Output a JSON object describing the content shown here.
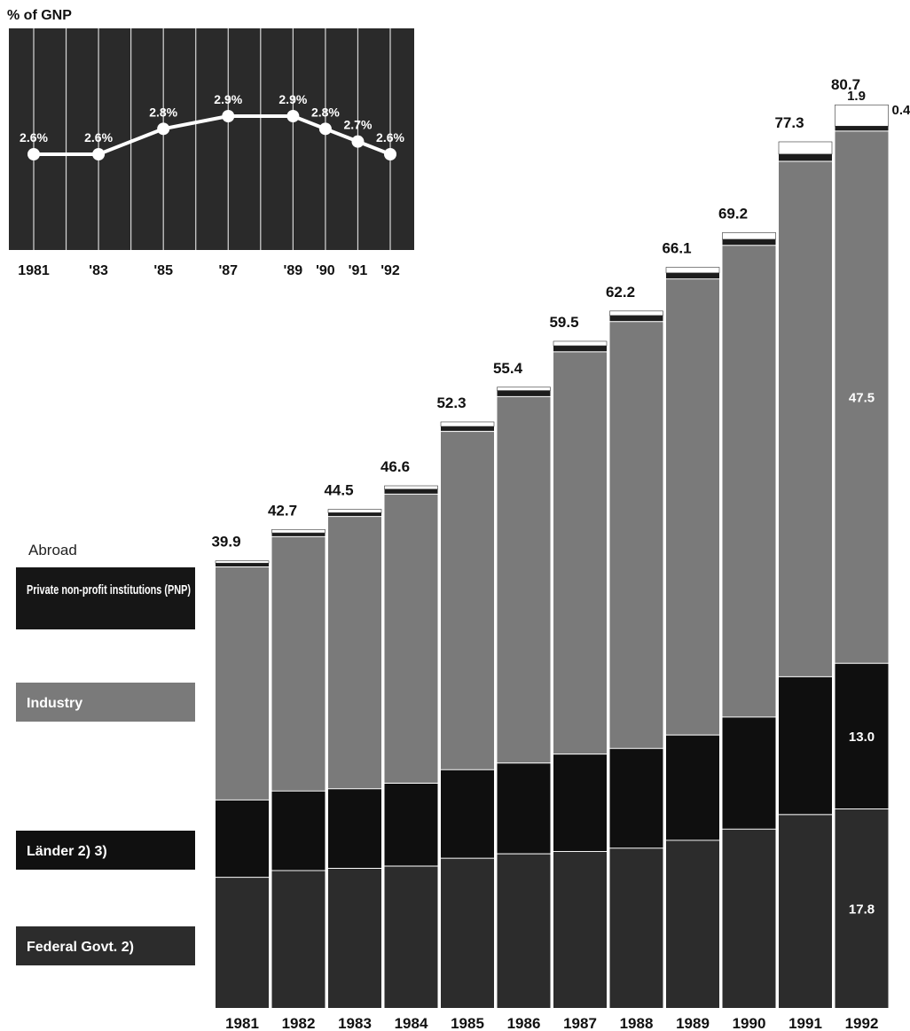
{
  "chart_data": [
    {
      "type": "line",
      "title": "% of GNP",
      "x": [
        "1981",
        "'83",
        "'85",
        "'87",
        "'89",
        "'90",
        "'91",
        "'92"
      ],
      "years": [
        1981,
        1983,
        1985,
        1987,
        1989,
        1990,
        1991,
        1992
      ],
      "values": [
        2.6,
        2.6,
        2.8,
        2.9,
        2.9,
        2.8,
        2.7,
        2.6
      ],
      "point_labels": [
        "2.6%",
        "2.6%",
        "2.8%",
        "2.9%",
        "2.9%",
        "2.8%",
        "2.7%",
        "2.6%"
      ],
      "ylim": [
        2.0,
        3.5
      ],
      "colors": {
        "panel": "#2a2a2a",
        "line": "#ffffff",
        "grid": "#d8d8d8"
      }
    },
    {
      "type": "bar",
      "stacked": true,
      "categories": [
        "1981",
        "1982",
        "1983",
        "1984",
        "1985",
        "1986",
        "1987",
        "1988",
        "1989",
        "1990",
        "1991",
        "1992"
      ],
      "totals": [
        39.9,
        42.7,
        44.5,
        46.6,
        52.3,
        55.4,
        59.5,
        62.2,
        66.1,
        69.2,
        77.3,
        80.7
      ],
      "total_labels": [
        "39.9",
        "42.7",
        "44.5",
        "46.6",
        "52.3",
        "55.4",
        "59.5",
        "62.2",
        "66.1",
        "69.2",
        "77.3",
        "80.7"
      ],
      "ylim": [
        0,
        85
      ],
      "series": [
        {
          "name": "Federal Govt. 2)",
          "color": "#2c2c2c",
          "label_dark": true,
          "values": [
            11.7,
            12.3,
            12.5,
            12.7,
            13.4,
            13.8,
            14.0,
            14.3,
            15.0,
            16.0,
            17.3,
            17.8
          ]
        },
        {
          "name": "Länder 2) 3)",
          "color": "#0f0f0f",
          "label_dark": true,
          "values": [
            6.9,
            7.1,
            7.1,
            7.4,
            7.9,
            8.1,
            8.7,
            8.9,
            9.4,
            10.0,
            12.3,
            13.0
          ]
        },
        {
          "name": "Industry",
          "color": "#7a7a7a",
          "label_dark": false,
          "values": [
            20.8,
            22.7,
            24.3,
            25.8,
            30.2,
            32.7,
            35.9,
            38.1,
            40.7,
            42.1,
            46.0,
            47.5
          ]
        },
        {
          "name": "Private non-profit institutions (PNP)",
          "color": "#1c1c1c",
          "label_dark": true,
          "values": [
            0.3,
            0.3,
            0.3,
            0.4,
            0.4,
            0.5,
            0.5,
            0.5,
            0.5,
            0.5,
            0.6,
            0.4
          ]
        },
        {
          "name": "Abroad",
          "color": "#ffffff",
          "label_dark": false,
          "values": [
            0.2,
            0.3,
            0.3,
            0.3,
            0.4,
            0.3,
            0.4,
            0.4,
            0.5,
            0.6,
            1.1,
            1.9
          ]
        }
      ],
      "annotations": [
        {
          "category": "1992",
          "series": "Federal Govt. 2)",
          "text": "17.8"
        },
        {
          "category": "1992",
          "series": "Länder 2) 3)",
          "text": "13.0"
        },
        {
          "category": "1992",
          "series": "Industry",
          "text": "47.5"
        },
        {
          "category": "1992",
          "series": "Abroad",
          "text": "1.9"
        },
        {
          "category": "1992",
          "series": "Private non-profit institutions (PNP)",
          "text": "0.4"
        }
      ]
    }
  ]
}
